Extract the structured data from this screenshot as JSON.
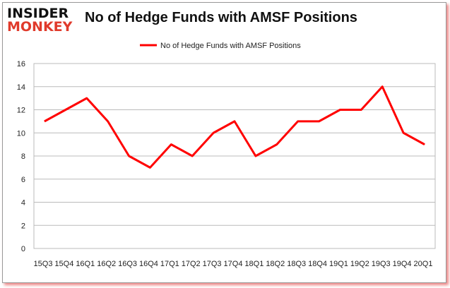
{
  "logo": {
    "line1": "INSIDER",
    "line2": "MONKEY"
  },
  "chart_data": {
    "type": "line",
    "title": "No of Hedge Funds with AMSF Positions",
    "xlabel": "",
    "ylabel": "",
    "categories": [
      "15Q3",
      "15Q4",
      "16Q1",
      "16Q2",
      "16Q3",
      "16Q4",
      "17Q1",
      "17Q2",
      "17Q3",
      "17Q4",
      "18Q1",
      "18Q2",
      "18Q3",
      "18Q4",
      "19Q1",
      "19Q2",
      "19Q3",
      "19Q4",
      "20Q1"
    ],
    "series": [
      {
        "name": "No of Hedge Funds with AMSF Positions",
        "color": "#ff0000",
        "values": [
          11,
          12,
          13,
          11,
          8,
          7,
          9,
          8,
          10,
          11,
          8,
          9,
          11,
          11,
          12,
          12,
          14,
          10,
          9
        ]
      }
    ],
    "ylim": [
      0,
      16
    ],
    "yticks": [
      0,
      2,
      4,
      6,
      8,
      10,
      12,
      14,
      16
    ],
    "grid": true,
    "legend": "top-center"
  }
}
